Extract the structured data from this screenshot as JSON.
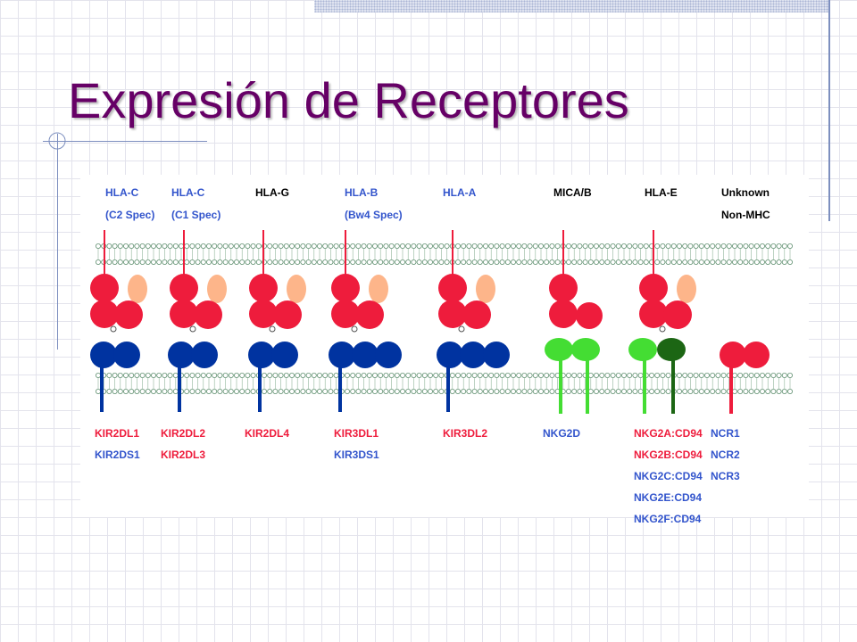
{
  "slide": {
    "title": "Expresión de Receptores"
  },
  "colors": {
    "title": "#660066",
    "ligand_red": "#ee1c3c",
    "ligand_peach": "#fdb58a",
    "kir_blue": "#0033a0",
    "nkg2_green": "#44dd33",
    "cd94_dark_green": "#1c6614",
    "header_blue": "#3355cc",
    "label_red": "#ee1c3c",
    "label_blue": "#3355cc"
  },
  "ligands": [
    {
      "name": "HLA-C",
      "sub": "(C2 Spec)",
      "color": "blue"
    },
    {
      "name": "HLA-C",
      "sub": "(C1 Spec)",
      "color": "blue"
    },
    {
      "name": "HLA-G",
      "sub": "",
      "color": "black"
    },
    {
      "name": "HLA-B",
      "sub": "(Bw4 Spec)",
      "color": "blue"
    },
    {
      "name": "HLA-A",
      "sub": "",
      "color": "blue"
    },
    {
      "name": "MICA/B",
      "sub": "",
      "color": "black"
    },
    {
      "name": "HLA-E",
      "sub": "",
      "color": "black"
    },
    {
      "name": "Unknown",
      "sub": "Non-MHC",
      "color": "black"
    }
  ],
  "receptors": [
    {
      "labels": [
        {
          "text": "KIR2DL1",
          "color": "red"
        },
        {
          "text": "KIR2DS1",
          "color": "blue"
        }
      ]
    },
    {
      "labels": [
        {
          "text": "KIR2DL2",
          "color": "red"
        },
        {
          "text": "KIR2DL3",
          "color": "red"
        }
      ]
    },
    {
      "labels": [
        {
          "text": "KIR2DL4",
          "color": "red"
        }
      ]
    },
    {
      "labels": [
        {
          "text": "KIR3DL1",
          "color": "red"
        },
        {
          "text": "KIR3DS1",
          "color": "blue"
        }
      ]
    },
    {
      "labels": [
        {
          "text": "KIR3DL2",
          "color": "red"
        }
      ]
    },
    {
      "labels": [
        {
          "text": "NKG2D",
          "color": "blue"
        }
      ]
    },
    {
      "labels": [
        {
          "text": "NKG2A:CD94",
          "color": "red"
        },
        {
          "text": "NKG2B:CD94",
          "color": "red"
        },
        {
          "text": "NKG2C:CD94",
          "color": "blue"
        },
        {
          "text": "NKG2E:CD94",
          "color": "blue"
        },
        {
          "text": "NKG2F:CD94",
          "color": "blue"
        }
      ]
    },
    {
      "labels": [
        {
          "text": "NCR1",
          "color": "blue"
        },
        {
          "text": "NCR2",
          "color": "blue"
        },
        {
          "text": "NCR3",
          "color": "blue"
        }
      ]
    }
  ]
}
